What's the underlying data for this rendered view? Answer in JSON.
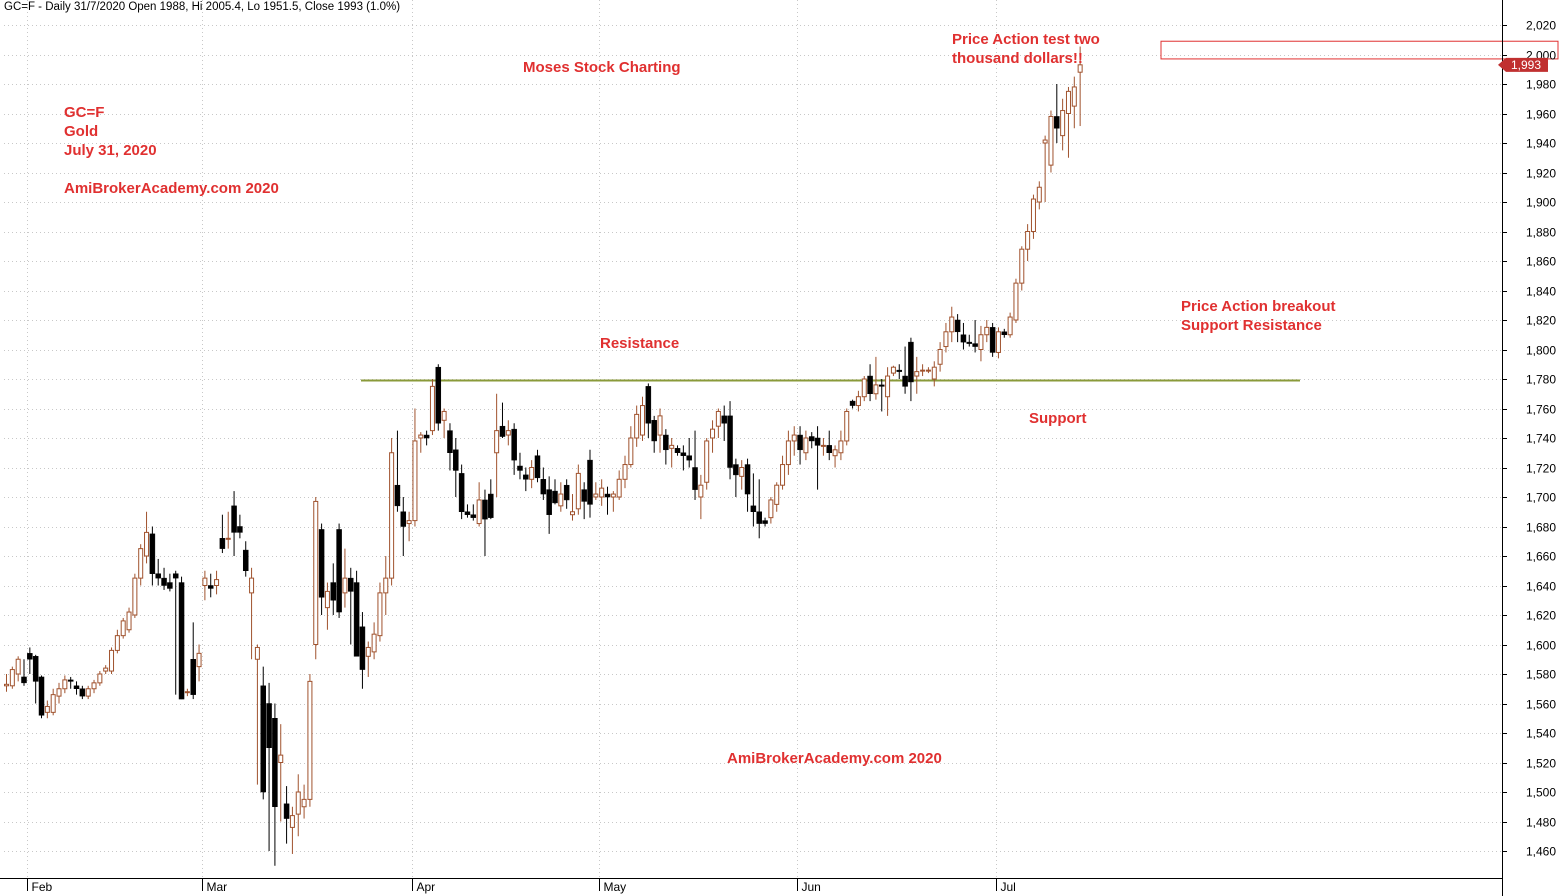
{
  "header": "GC=F - Daily 31/7/2020 Open 1988, Hi 2005.4, Lo 1951.5, Close 1993 (1.0%)",
  "annotations": {
    "watermark_top": "Moses Stock Charting",
    "symbol_block": [
      "GC=F",
      "Gold",
      "July 31, 2020"
    ],
    "site_top": "AmiBrokerAcademy.com  2020",
    "site_bottom": "AmiBrokerAcademy.com  2020",
    "price_test": [
      "Price Action test two",
      "thousand dollars!!"
    ],
    "breakout": [
      "Price Action breakout",
      "Support Resistance"
    ],
    "resistance": "Resistance",
    "support": "Support"
  },
  "colors": {
    "up": "#a0522d",
    "down": "#000000",
    "level_line": "#8a9a3a",
    "annotation": "#e03030",
    "last_price_bg": "#c03030",
    "grid": "#c8c8c8"
  },
  "chart_data": {
    "type": "candlestick",
    "symbol": "GC=F",
    "ylim": [
      1445,
      2035
    ],
    "yticks": [
      1460,
      1480,
      1500,
      1520,
      1540,
      1560,
      1580,
      1600,
      1620,
      1640,
      1660,
      1680,
      1700,
      1720,
      1740,
      1760,
      1780,
      1800,
      1820,
      1840,
      1860,
      1880,
      1900,
      1920,
      1940,
      1960,
      1980,
      2000,
      2020
    ],
    "ytick_labels": [
      "1,460",
      "1,480",
      "1,500",
      "1,520",
      "1,540",
      "1,560",
      "1,580",
      "1,600",
      "1,620",
      "1,640",
      "1,660",
      "1,680",
      "1,700",
      "1,720",
      "1,740",
      "1,760",
      "1,780",
      "1,800",
      "1,820",
      "1,840",
      "1,860",
      "1,880",
      "1,900",
      "1,920",
      "1,940",
      "1,960",
      "1,980",
      "2,000",
      "2,020"
    ],
    "months": [
      {
        "label": "Feb",
        "index": 4
      },
      {
        "label": "Mar",
        "index": 34
      },
      {
        "label": "Apr",
        "index": 70
      },
      {
        "label": "May",
        "index": 102
      },
      {
        "label": "Jun",
        "index": 136
      },
      {
        "label": "Jul",
        "index": 170
      }
    ],
    "support_resistance_level": 1779,
    "target_zone": {
      "low": 1997,
      "high": 2009
    },
    "last_price_label": "1,993",
    "last_price": 1993,
    "candles": [
      {
        "o": 1572,
        "h": 1580,
        "l": 1568,
        "c": 1573
      },
      {
        "o": 1572,
        "h": 1585,
        "l": 1570,
        "c": 1583
      },
      {
        "o": 1580,
        "h": 1592,
        "l": 1575,
        "c": 1590
      },
      {
        "o": 1578,
        "h": 1590,
        "l": 1572,
        "c": 1574
      },
      {
        "o": 1594,
        "h": 1598,
        "l": 1580,
        "c": 1590
      },
      {
        "o": 1592,
        "h": 1593,
        "l": 1560,
        "c": 1575
      },
      {
        "o": 1578,
        "h": 1579,
        "l": 1550,
        "c": 1552
      },
      {
        "o": 1554,
        "h": 1562,
        "l": 1550,
        "c": 1558
      },
      {
        "o": 1554,
        "h": 1570,
        "l": 1552,
        "c": 1566
      },
      {
        "o": 1565,
        "h": 1574,
        "l": 1560,
        "c": 1570
      },
      {
        "o": 1570,
        "h": 1579,
        "l": 1567,
        "c": 1576
      },
      {
        "o": 1576,
        "h": 1578,
        "l": 1570,
        "c": 1575
      },
      {
        "o": 1572,
        "h": 1575,
        "l": 1566,
        "c": 1570
      },
      {
        "o": 1570,
        "h": 1572,
        "l": 1563,
        "c": 1565
      },
      {
        "o": 1565,
        "h": 1572,
        "l": 1563,
        "c": 1570
      },
      {
        "o": 1570,
        "h": 1576,
        "l": 1567,
        "c": 1574
      },
      {
        "o": 1574,
        "h": 1582,
        "l": 1572,
        "c": 1580
      },
      {
        "o": 1582,
        "h": 1586,
        "l": 1580,
        "c": 1584
      },
      {
        "o": 1582,
        "h": 1598,
        "l": 1580,
        "c": 1596
      },
      {
        "o": 1596,
        "h": 1610,
        "l": 1594,
        "c": 1606
      },
      {
        "o": 1606,
        "h": 1618,
        "l": 1604,
        "c": 1616
      },
      {
        "o": 1610,
        "h": 1625,
        "l": 1608,
        "c": 1622
      },
      {
        "o": 1620,
        "h": 1648,
        "l": 1618,
        "c": 1645
      },
      {
        "o": 1645,
        "h": 1668,
        "l": 1640,
        "c": 1665
      },
      {
        "o": 1660,
        "h": 1690,
        "l": 1655,
        "c": 1676
      },
      {
        "o": 1675,
        "h": 1680,
        "l": 1640,
        "c": 1648
      },
      {
        "o": 1648,
        "h": 1658,
        "l": 1640,
        "c": 1645
      },
      {
        "o": 1645,
        "h": 1652,
        "l": 1637,
        "c": 1640
      },
      {
        "o": 1642,
        "h": 1648,
        "l": 1636,
        "c": 1638
      },
      {
        "o": 1648,
        "h": 1650,
        "l": 1566,
        "c": 1645
      },
      {
        "o": 1642,
        "h": 1646,
        "l": 1563,
        "c": 1563
      },
      {
        "o": 1568,
        "h": 1570,
        "l": 1565,
        "c": 1568
      },
      {
        "o": 1590,
        "h": 1615,
        "l": 1563,
        "c": 1566
      },
      {
        "o": 1585,
        "h": 1600,
        "l": 1575,
        "c": 1594
      },
      {
        "o": 1640,
        "h": 1650,
        "l": 1630,
        "c": 1645
      },
      {
        "o": 1640,
        "h": 1648,
        "l": 1632,
        "c": 1638
      },
      {
        "o": 1640,
        "h": 1650,
        "l": 1634,
        "c": 1644
      },
      {
        "o": 1672,
        "h": 1688,
        "l": 1662,
        "c": 1665
      },
      {
        "o": 1672,
        "h": 1690,
        "l": 1665,
        "c": 1672
      },
      {
        "o": 1694,
        "h": 1704,
        "l": 1660,
        "c": 1676
      },
      {
        "o": 1680,
        "h": 1688,
        "l": 1672,
        "c": 1676
      },
      {
        "o": 1664,
        "h": 1670,
        "l": 1646,
        "c": 1650
      },
      {
        "o": 1635,
        "h": 1652,
        "l": 1590,
        "c": 1645
      },
      {
        "o": 1590,
        "h": 1600,
        "l": 1505,
        "c": 1598
      },
      {
        "o": 1572,
        "h": 1585,
        "l": 1495,
        "c": 1500
      },
      {
        "o": 1560,
        "h": 1574,
        "l": 1460,
        "c": 1530
      },
      {
        "o": 1550,
        "h": 1560,
        "l": 1450,
        "c": 1490
      },
      {
        "o": 1520,
        "h": 1546,
        "l": 1480,
        "c": 1525
      },
      {
        "o": 1492,
        "h": 1504,
        "l": 1465,
        "c": 1482
      },
      {
        "o": 1476,
        "h": 1490,
        "l": 1458,
        "c": 1484
      },
      {
        "o": 1485,
        "h": 1512,
        "l": 1470,
        "c": 1500
      },
      {
        "o": 1490,
        "h": 1505,
        "l": 1482,
        "c": 1495
      },
      {
        "o": 1495,
        "h": 1580,
        "l": 1490,
        "c": 1575
      },
      {
        "o": 1600,
        "h": 1700,
        "l": 1590,
        "c": 1697
      },
      {
        "o": 1678,
        "h": 1682,
        "l": 1620,
        "c": 1632
      },
      {
        "o": 1625,
        "h": 1642,
        "l": 1610,
        "c": 1636
      },
      {
        "o": 1642,
        "h": 1655,
        "l": 1620,
        "c": 1630
      },
      {
        "o": 1678,
        "h": 1682,
        "l": 1618,
        "c": 1622
      },
      {
        "o": 1635,
        "h": 1665,
        "l": 1625,
        "c": 1645
      },
      {
        "o": 1645,
        "h": 1652,
        "l": 1600,
        "c": 1636
      },
      {
        "o": 1642,
        "h": 1650,
        "l": 1596,
        "c": 1592
      },
      {
        "o": 1612,
        "h": 1622,
        "l": 1570,
        "c": 1583
      },
      {
        "o": 1592,
        "h": 1602,
        "l": 1578,
        "c": 1598
      },
      {
        "o": 1595,
        "h": 1615,
        "l": 1590,
        "c": 1607
      },
      {
        "o": 1606,
        "h": 1642,
        "l": 1602,
        "c": 1635
      },
      {
        "o": 1635,
        "h": 1660,
        "l": 1620,
        "c": 1645
      },
      {
        "o": 1645,
        "h": 1740,
        "l": 1640,
        "c": 1730
      },
      {
        "o": 1708,
        "h": 1745,
        "l": 1690,
        "c": 1694
      },
      {
        "o": 1690,
        "h": 1700,
        "l": 1660,
        "c": 1680
      },
      {
        "o": 1682,
        "h": 1690,
        "l": 1670,
        "c": 1684
      },
      {
        "o": 1684,
        "h": 1760,
        "l": 1680,
        "c": 1738
      },
      {
        "o": 1740,
        "h": 1744,
        "l": 1730,
        "c": 1742
      },
      {
        "o": 1742,
        "h": 1745,
        "l": 1735,
        "c": 1740
      },
      {
        "o": 1745,
        "h": 1780,
        "l": 1742,
        "c": 1775
      },
      {
        "o": 1788,
        "h": 1790,
        "l": 1745,
        "c": 1750
      },
      {
        "o": 1752,
        "h": 1760,
        "l": 1740,
        "c": 1758
      },
      {
        "o": 1745,
        "h": 1750,
        "l": 1718,
        "c": 1730
      },
      {
        "o": 1732,
        "h": 1740,
        "l": 1700,
        "c": 1718
      },
      {
        "o": 1716,
        "h": 1722,
        "l": 1685,
        "c": 1690
      },
      {
        "o": 1690,
        "h": 1695,
        "l": 1686,
        "c": 1688
      },
      {
        "o": 1688,
        "h": 1695,
        "l": 1684,
        "c": 1686
      },
      {
        "o": 1682,
        "h": 1710,
        "l": 1680,
        "c": 1698
      },
      {
        "o": 1698,
        "h": 1705,
        "l": 1660,
        "c": 1685
      },
      {
        "o": 1702,
        "h": 1712,
        "l": 1685,
        "c": 1686
      },
      {
        "o": 1730,
        "h": 1770,
        "l": 1700,
        "c": 1745
      },
      {
        "o": 1748,
        "h": 1764,
        "l": 1740,
        "c": 1741
      },
      {
        "o": 1742,
        "h": 1752,
        "l": 1735,
        "c": 1745
      },
      {
        "o": 1746,
        "h": 1750,
        "l": 1715,
        "c": 1725
      },
      {
        "o": 1721,
        "h": 1730,
        "l": 1712,
        "c": 1718
      },
      {
        "o": 1715,
        "h": 1720,
        "l": 1704,
        "c": 1712
      },
      {
        "o": 1712,
        "h": 1725,
        "l": 1706,
        "c": 1720
      },
      {
        "o": 1728,
        "h": 1732,
        "l": 1710,
        "c": 1713
      },
      {
        "o": 1712,
        "h": 1720,
        "l": 1698,
        "c": 1702
      },
      {
        "o": 1705,
        "h": 1714,
        "l": 1675,
        "c": 1688
      },
      {
        "o": 1704,
        "h": 1712,
        "l": 1695,
        "c": 1696
      },
      {
        "o": 1694,
        "h": 1710,
        "l": 1690,
        "c": 1702
      },
      {
        "o": 1708,
        "h": 1712,
        "l": 1692,
        "c": 1698
      },
      {
        "o": 1688,
        "h": 1702,
        "l": 1684,
        "c": 1690
      },
      {
        "o": 1692,
        "h": 1722,
        "l": 1688,
        "c": 1716
      },
      {
        "o": 1705,
        "h": 1710,
        "l": 1685,
        "c": 1697
      },
      {
        "o": 1725,
        "h": 1732,
        "l": 1686,
        "c": 1695
      },
      {
        "o": 1700,
        "h": 1710,
        "l": 1698,
        "c": 1702
      },
      {
        "o": 1700,
        "h": 1712,
        "l": 1694,
        "c": 1706
      },
      {
        "o": 1702,
        "h": 1707,
        "l": 1688,
        "c": 1700
      },
      {
        "o": 1700,
        "h": 1704,
        "l": 1690,
        "c": 1702
      },
      {
        "o": 1700,
        "h": 1718,
        "l": 1698,
        "c": 1712
      },
      {
        "o": 1712,
        "h": 1728,
        "l": 1706,
        "c": 1722
      },
      {
        "o": 1722,
        "h": 1748,
        "l": 1720,
        "c": 1740
      },
      {
        "o": 1740,
        "h": 1762,
        "l": 1734,
        "c": 1756
      },
      {
        "o": 1742,
        "h": 1768,
        "l": 1738,
        "c": 1762
      },
      {
        "o": 1775,
        "h": 1777,
        "l": 1740,
        "c": 1750
      },
      {
        "o": 1752,
        "h": 1755,
        "l": 1730,
        "c": 1738
      },
      {
        "o": 1742,
        "h": 1760,
        "l": 1730,
        "c": 1755
      },
      {
        "o": 1742,
        "h": 1746,
        "l": 1722,
        "c": 1732
      },
      {
        "o": 1733,
        "h": 1740,
        "l": 1720,
        "c": 1735
      },
      {
        "o": 1733,
        "h": 1735,
        "l": 1728,
        "c": 1730
      },
      {
        "o": 1730,
        "h": 1735,
        "l": 1718,
        "c": 1728
      },
      {
        "o": 1728,
        "h": 1740,
        "l": 1720,
        "c": 1725
      },
      {
        "o": 1720,
        "h": 1745,
        "l": 1698,
        "c": 1705
      },
      {
        "o": 1700,
        "h": 1715,
        "l": 1685,
        "c": 1708
      },
      {
        "o": 1710,
        "h": 1740,
        "l": 1705,
        "c": 1738
      },
      {
        "o": 1740,
        "h": 1752,
        "l": 1730,
        "c": 1746
      },
      {
        "o": 1748,
        "h": 1760,
        "l": 1740,
        "c": 1758
      },
      {
        "o": 1755,
        "h": 1762,
        "l": 1738,
        "c": 1750
      },
      {
        "o": 1755,
        "h": 1765,
        "l": 1712,
        "c": 1720
      },
      {
        "o": 1722,
        "h": 1726,
        "l": 1700,
        "c": 1715
      },
      {
        "o": 1714,
        "h": 1725,
        "l": 1705,
        "c": 1720
      },
      {
        "o": 1722,
        "h": 1726,
        "l": 1690,
        "c": 1702
      },
      {
        "o": 1694,
        "h": 1716,
        "l": 1680,
        "c": 1690
      },
      {
        "o": 1690,
        "h": 1712,
        "l": 1672,
        "c": 1682
      },
      {
        "o": 1684,
        "h": 1686,
        "l": 1680,
        "c": 1682
      },
      {
        "o": 1686,
        "h": 1700,
        "l": 1682,
        "c": 1698
      },
      {
        "o": 1695,
        "h": 1710,
        "l": 1690,
        "c": 1708
      },
      {
        "o": 1708,
        "h": 1728,
        "l": 1705,
        "c": 1722
      },
      {
        "o": 1722,
        "h": 1745,
        "l": 1715,
        "c": 1738
      },
      {
        "o": 1738,
        "h": 1748,
        "l": 1728,
        "c": 1742
      },
      {
        "o": 1742,
        "h": 1748,
        "l": 1722,
        "c": 1732
      },
      {
        "o": 1730,
        "h": 1745,
        "l": 1725,
        "c": 1740
      },
      {
        "o": 1741,
        "h": 1744,
        "l": 1733,
        "c": 1738
      },
      {
        "o": 1740,
        "h": 1748,
        "l": 1705,
        "c": 1735
      },
      {
        "o": 1735,
        "h": 1740,
        "l": 1728,
        "c": 1735
      },
      {
        "o": 1735,
        "h": 1745,
        "l": 1725,
        "c": 1730
      },
      {
        "o": 1728,
        "h": 1735,
        "l": 1720,
        "c": 1732
      },
      {
        "o": 1730,
        "h": 1745,
        "l": 1725,
        "c": 1738
      },
      {
        "o": 1738,
        "h": 1760,
        "l": 1735,
        "c": 1758
      },
      {
        "o": 1765,
        "h": 1766,
        "l": 1760,
        "c": 1762
      },
      {
        "o": 1762,
        "h": 1772,
        "l": 1758,
        "c": 1768
      },
      {
        "o": 1768,
        "h": 1782,
        "l": 1765,
        "c": 1780
      },
      {
        "o": 1782,
        "h": 1790,
        "l": 1765,
        "c": 1770
      },
      {
        "o": 1770,
        "h": 1795,
        "l": 1766,
        "c": 1776
      },
      {
        "o": 1776,
        "h": 1780,
        "l": 1758,
        "c": 1775
      },
      {
        "o": 1768,
        "h": 1788,
        "l": 1755,
        "c": 1782
      },
      {
        "o": 1784,
        "h": 1789,
        "l": 1782,
        "c": 1788
      },
      {
        "o": 1786,
        "h": 1790,
        "l": 1780,
        "c": 1785
      },
      {
        "o": 1782,
        "h": 1802,
        "l": 1770,
        "c": 1775
      },
      {
        "o": 1805,
        "h": 1808,
        "l": 1765,
        "c": 1778
      },
      {
        "o": 1782,
        "h": 1795,
        "l": 1770,
        "c": 1785
      },
      {
        "o": 1786,
        "h": 1790,
        "l": 1782,
        "c": 1786
      },
      {
        "o": 1786,
        "h": 1788,
        "l": 1784,
        "c": 1786
      },
      {
        "o": 1780,
        "h": 1792,
        "l": 1775,
        "c": 1788
      },
      {
        "o": 1790,
        "h": 1805,
        "l": 1785,
        "c": 1800
      },
      {
        "o": 1802,
        "h": 1818,
        "l": 1798,
        "c": 1812
      },
      {
        "o": 1812,
        "h": 1829,
        "l": 1805,
        "c": 1822
      },
      {
        "o": 1820,
        "h": 1824,
        "l": 1805,
        "c": 1812
      },
      {
        "o": 1810,
        "h": 1818,
        "l": 1800,
        "c": 1805
      },
      {
        "o": 1805,
        "h": 1810,
        "l": 1802,
        "c": 1804
      },
      {
        "o": 1804,
        "h": 1820,
        "l": 1798,
        "c": 1802
      },
      {
        "o": 1800,
        "h": 1816,
        "l": 1792,
        "c": 1810
      },
      {
        "o": 1810,
        "h": 1820,
        "l": 1805,
        "c": 1815
      },
      {
        "o": 1815,
        "h": 1818,
        "l": 1795,
        "c": 1798
      },
      {
        "o": 1798,
        "h": 1815,
        "l": 1794,
        "c": 1812
      },
      {
        "o": 1812,
        "h": 1814,
        "l": 1808,
        "c": 1810
      },
      {
        "o": 1810,
        "h": 1825,
        "l": 1808,
        "c": 1822
      },
      {
        "o": 1820,
        "h": 1848,
        "l": 1818,
        "c": 1845
      },
      {
        "o": 1845,
        "h": 1870,
        "l": 1840,
        "c": 1868
      },
      {
        "o": 1868,
        "h": 1885,
        "l": 1860,
        "c": 1880
      },
      {
        "o": 1880,
        "h": 1905,
        "l": 1875,
        "c": 1902
      },
      {
        "o": 1900,
        "h": 1914,
        "l": 1895,
        "c": 1910
      },
      {
        "o": 1940,
        "h": 1945,
        "l": 1900,
        "c": 1942
      },
      {
        "o": 1925,
        "h": 1962,
        "l": 1920,
        "c": 1958
      },
      {
        "o": 1958,
        "h": 1980,
        "l": 1940,
        "c": 1950
      },
      {
        "o": 1945,
        "h": 1970,
        "l": 1935,
        "c": 1962
      },
      {
        "o": 1960,
        "h": 1978,
        "l": 1930,
        "c": 1975
      },
      {
        "o": 1965,
        "h": 1985,
        "l": 1950,
        "c": 1978
      },
      {
        "o": 1988,
        "h": 2005.4,
        "l": 1951.5,
        "c": 1993
      }
    ]
  }
}
